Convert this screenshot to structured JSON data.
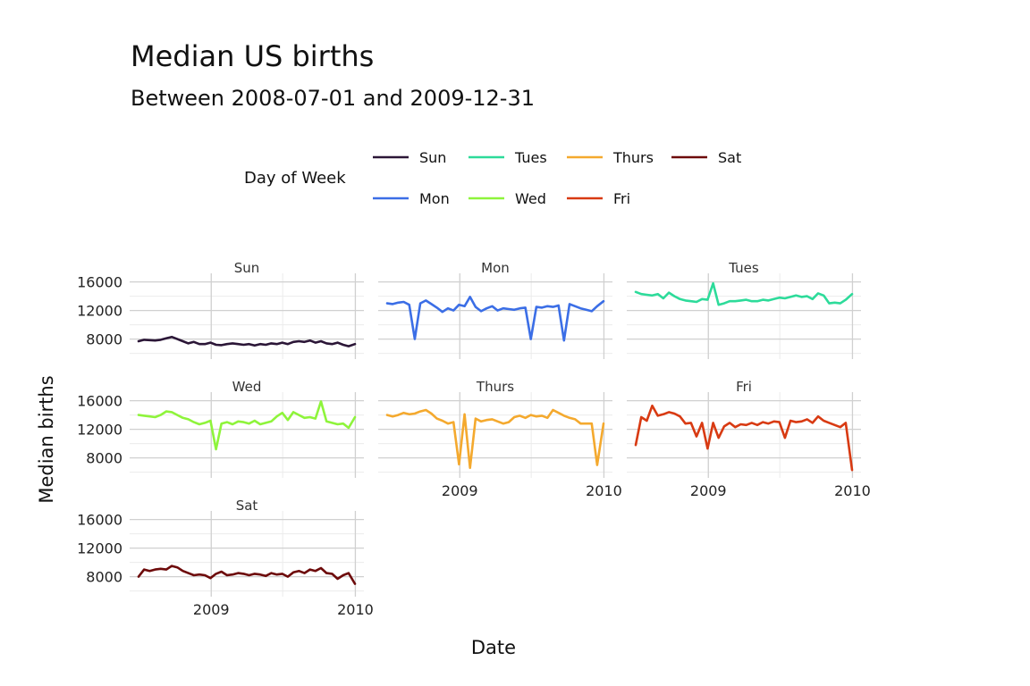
{
  "chart_data": {
    "type": "line",
    "title": "Median US births",
    "subtitle": "Between 2008-07-01 and 2009-12-31",
    "xlabel": "Date",
    "ylabel": "Median births",
    "xlim": [
      "2008-07-01",
      "2009-12-31"
    ],
    "ylim": [
      6200,
      16200
    ],
    "y_ticks": [
      8000,
      12000,
      16000
    ],
    "x_ticks": [
      "2009",
      "2010"
    ],
    "grid": true,
    "legend": {
      "title": "Day of Week",
      "placement": "top",
      "entries": [
        "Sun",
        "Mon",
        "Tues",
        "Wed",
        "Thurs",
        "Fri",
        "Sat"
      ]
    },
    "colors": {
      "Sun": "#2b1637",
      "Mon": "#3b6ee6",
      "Tues": "#2ddb9a",
      "Wed": "#8ef43b",
      "Thurs": "#f4a92e",
      "Fri": "#d83a12",
      "Sat": "#6d0a0a"
    },
    "x_dates": [
      "2008-07-01",
      "2008-07-15",
      "2008-07-29",
      "2008-08-12",
      "2008-08-26",
      "2008-09-09",
      "2008-09-23",
      "2008-10-07",
      "2008-10-21",
      "2008-11-04",
      "2008-11-18",
      "2008-12-02",
      "2008-12-16",
      "2008-12-30",
      "2009-01-13",
      "2009-01-27",
      "2009-02-10",
      "2009-02-24",
      "2009-03-10",
      "2009-03-24",
      "2009-04-07",
      "2009-04-21",
      "2009-05-05",
      "2009-05-19",
      "2009-06-02",
      "2009-06-16",
      "2009-06-30",
      "2009-07-14",
      "2009-07-28",
      "2009-08-11",
      "2009-08-25",
      "2009-09-08",
      "2009-09-22",
      "2009-10-06",
      "2009-10-20",
      "2009-11-03",
      "2009-11-17",
      "2009-12-01",
      "2009-12-15",
      "2009-12-31"
    ],
    "series": [
      {
        "name": "Sun",
        "values": [
          7700,
          7900,
          7850,
          7800,
          7900,
          8100,
          8300,
          8000,
          7700,
          7400,
          7600,
          7300,
          7300,
          7500,
          7200,
          7150,
          7300,
          7400,
          7300,
          7200,
          7300,
          7100,
          7300,
          7200,
          7400,
          7300,
          7500,
          7300,
          7600,
          7700,
          7600,
          7800,
          7500,
          7700,
          7400,
          7300,
          7500,
          7200,
          7000,
          7300
        ]
      },
      {
        "name": "Mon",
        "values": [
          13000,
          12900,
          13100,
          13200,
          12800,
          8000,
          13000,
          13400,
          12900,
          12400,
          11800,
          12300,
          12000,
          12800,
          12600,
          13900,
          12500,
          11900,
          12300,
          12600,
          12000,
          12300,
          12200,
          12100,
          12300,
          12400,
          8000,
          12500,
          12400,
          12600,
          12500,
          12700,
          7800,
          12900,
          12600,
          12300,
          12100,
          11900,
          12600,
          13300
        ]
      },
      {
        "name": "Tues",
        "values": [
          14600,
          14300,
          14200,
          14100,
          14300,
          13700,
          14500,
          14000,
          13600,
          13400,
          13300,
          13200,
          13600,
          13500,
          15800,
          12800,
          13000,
          13300,
          13300,
          13400,
          13500,
          13300,
          13300,
          13500,
          13400,
          13600,
          13800,
          13700,
          13900,
          14100,
          13900,
          14000,
          13600,
          14400,
          14100,
          13000,
          13100,
          13000,
          13500,
          14300
        ]
      },
      {
        "name": "Wed",
        "values": [
          14000,
          13900,
          13800,
          13700,
          14000,
          14500,
          14400,
          14000,
          13600,
          13400,
          13000,
          12700,
          12900,
          13200,
          9200,
          12800,
          13000,
          12700,
          13100,
          13000,
          12800,
          13200,
          12700,
          12900,
          13100,
          13800,
          14300,
          13300,
          14400,
          14000,
          13600,
          13700,
          13500,
          15900,
          13100,
          12900,
          12700,
          12800,
          12200,
          13700
        ]
      },
      {
        "name": "Thurs",
        "values": [
          14000,
          13800,
          14000,
          14300,
          14100,
          14200,
          14500,
          14700,
          14200,
          13500,
          13200,
          12800,
          13000,
          7100,
          14100,
          6600,
          13500,
          13100,
          13300,
          13400,
          13100,
          12800,
          13000,
          13700,
          13900,
          13600,
          14000,
          13800,
          13900,
          13600,
          14700,
          14300,
          13900,
          13600,
          13400,
          12800,
          12800,
          12800,
          7000,
          12800
        ]
      },
      {
        "name": "Fri",
        "values": [
          9800,
          13700,
          13200,
          15300,
          13900,
          14100,
          14400,
          14200,
          13800,
          12800,
          12900,
          11000,
          12900,
          9300,
          12900,
          10800,
          12400,
          12900,
          12300,
          12700,
          12600,
          12900,
          12600,
          13000,
          12800,
          13100,
          13000,
          10800,
          13200,
          13000,
          13100,
          13400,
          12900,
          13800,
          13200,
          12900,
          12600,
          12300,
          12900,
          6300
        ]
      },
      {
        "name": "Sat",
        "values": [
          8000,
          9000,
          8800,
          9000,
          9100,
          9000,
          9500,
          9300,
          8800,
          8500,
          8200,
          8300,
          8200,
          7800,
          8400,
          8700,
          8200,
          8300,
          8500,
          8400,
          8200,
          8400,
          8300,
          8100,
          8500,
          8300,
          8400,
          8000,
          8600,
          8800,
          8500,
          9000,
          8800,
          9200,
          8500,
          8400,
          7700,
          8200,
          8500,
          7000
        ]
      }
    ]
  }
}
